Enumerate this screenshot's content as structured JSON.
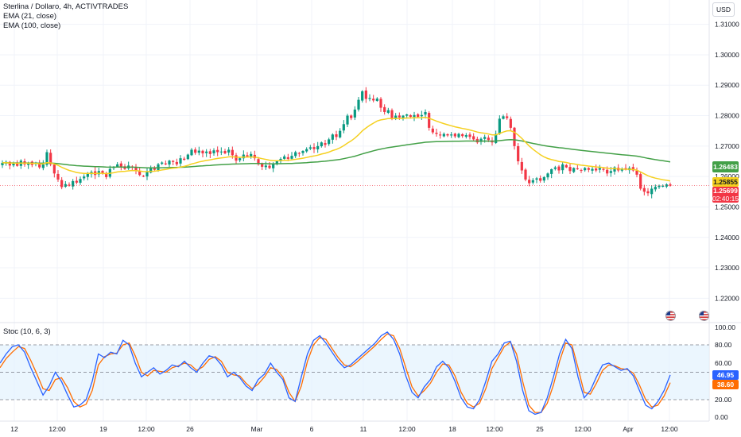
{
  "legend": {
    "symbol": "Sterlina / Dollaro, 4h, ACTIVTRADES",
    "ema1": "EMA (21, close)",
    "ema2": "EMA (100, close)"
  },
  "stoc_title": "Stoc (10, 6, 3)",
  "currency_button": "USD",
  "price_tags": {
    "ema100": "1.26483",
    "ema21": "1.25855",
    "last_price": "1.25699",
    "countdown": "02:40:15",
    "stoc_k": "46.95",
    "stoc_d": "38.60"
  },
  "colors": {
    "up": "#089981",
    "down": "#f23645",
    "ema21": "#f5d020",
    "ema100": "#43a047",
    "stoc_k": "#2962ff",
    "stoc_d": "#ff6d00",
    "band_fill": "#e3f2fd"
  },
  "icons": [
    "flag-us-icon",
    "flag-us-icon"
  ],
  "chart_data": [
    {
      "type": "candlestick",
      "title": "Sterlina / Dollaro, 4h, ACTIVTRADES",
      "ylim": [
        1.212,
        1.318
      ],
      "y_ticks": [
        "1.31000",
        "1.30000",
        "1.29000",
        "1.28000",
        "1.27000",
        "1.26000",
        "1.25000",
        "1.24000",
        "1.23000",
        "1.22000"
      ],
      "x_ticks": [
        "12",
        "12:00",
        "19",
        "12:00",
        "26",
        "Mar",
        "6",
        "11",
        "12:00",
        "18",
        "12:00",
        "25",
        "12:00",
        "Apr",
        "12:00"
      ],
      "close": [
        1.2645,
        1.2648,
        1.2636,
        1.2642,
        1.2635,
        1.2652,
        1.264,
        1.2646,
        1.2638,
        1.2644,
        1.263,
        1.264,
        1.268,
        1.264,
        1.261,
        1.259,
        1.2565,
        1.2575,
        1.257,
        1.2585,
        1.258,
        1.2592,
        1.26,
        1.261,
        1.2615,
        1.2605,
        1.2618,
        1.2612,
        1.2598,
        1.2625,
        1.2632,
        1.264,
        1.2633,
        1.2625,
        1.2636,
        1.263,
        1.262,
        1.2605,
        1.26,
        1.2615,
        1.2628,
        1.2622,
        1.264,
        1.2646,
        1.264,
        1.2652,
        1.2648,
        1.264,
        1.266,
        1.2655,
        1.2672,
        1.2688,
        1.2678,
        1.2685,
        1.2676,
        1.2682,
        1.2674,
        1.2686,
        1.268,
        1.2682,
        1.2676,
        1.2688,
        1.267,
        1.2652,
        1.266,
        1.2672,
        1.2666,
        1.2674,
        1.266,
        1.264,
        1.2632,
        1.2636,
        1.2628,
        1.264,
        1.265,
        1.2658,
        1.2666,
        1.2658,
        1.2668,
        1.268,
        1.2675,
        1.2684,
        1.269,
        1.2696,
        1.269,
        1.27,
        1.2712,
        1.2704,
        1.2722,
        1.2738,
        1.273,
        1.275,
        1.2772,
        1.28,
        1.2792,
        1.282,
        1.2852,
        1.288,
        1.2855,
        1.2858,
        1.285,
        1.2856,
        1.2826,
        1.2812,
        1.2818,
        1.279,
        1.28,
        1.2794,
        1.28,
        1.2804,
        1.2796,
        1.2802,
        1.2796,
        1.2802,
        1.2812,
        1.276,
        1.2745,
        1.274,
        1.2735,
        1.274,
        1.2735,
        1.2738,
        1.2732,
        1.274,
        1.2733,
        1.2736,
        1.273,
        1.2722,
        1.2712,
        1.2724,
        1.273,
        1.272,
        1.2712,
        1.274,
        1.279,
        1.2798,
        1.2792,
        1.276,
        1.27,
        1.265,
        1.262,
        1.259,
        1.2578,
        1.2588,
        1.2594,
        1.2586,
        1.2598,
        1.261,
        1.2624,
        1.263,
        1.262,
        1.264,
        1.263,
        1.2618,
        1.2628,
        1.2624,
        1.262,
        1.2628,
        1.2622,
        1.2625,
        1.262,
        1.2628,
        1.2622,
        1.261,
        1.2618,
        1.263,
        1.262,
        1.2625,
        1.2622,
        1.2628,
        1.262,
        1.2606,
        1.256,
        1.255,
        1.2545,
        1.256,
        1.2566,
        1.257,
        1.2569,
        1.2574,
        1.257
      ],
      "ema21_end": 1.25855,
      "ema100_end": 1.26483,
      "last_price": 1.25699
    },
    {
      "type": "line",
      "title": "Stoc (10, 6, 3)",
      "ylim": [
        0,
        100
      ],
      "y_ticks": [
        "100.00",
        "80.00",
        "60.00",
        "40.00",
        "20.00",
        "0.00"
      ],
      "bands": [
        20,
        50,
        80
      ],
      "series": [
        {
          "name": "%K",
          "values": [
            60,
            70,
            78,
            80,
            72,
            55,
            40,
            25,
            35,
            50,
            40,
            25,
            12,
            14,
            20,
            40,
            70,
            66,
            72,
            70,
            85,
            80,
            60,
            45,
            50,
            55,
            48,
            52,
            58,
            56,
            62,
            55,
            50,
            60,
            68,
            66,
            58,
            45,
            50,
            44,
            35,
            30,
            42,
            48,
            60,
            50,
            42,
            22,
            18,
            45,
            70,
            85,
            90,
            82,
            72,
            62,
            55,
            58,
            64,
            70,
            76,
            82,
            90,
            94,
            86,
            70,
            46,
            28,
            22,
            34,
            42,
            56,
            62,
            55,
            40,
            22,
            12,
            10,
            20,
            40,
            62,
            70,
            82,
            84,
            62,
            30,
            8,
            4,
            6,
            22,
            45,
            70,
            86,
            76,
            45,
            22,
            30,
            45,
            58,
            60,
            56,
            52,
            54,
            46,
            30,
            14,
            10,
            18,
            30,
            47
          ]
        },
        {
          "name": "%D",
          "values": [
            55,
            65,
            72,
            78,
            76,
            63,
            48,
            32,
            30,
            42,
            44,
            33,
            18,
            12,
            15,
            30,
            58,
            67,
            70,
            71,
            80,
            82,
            68,
            50,
            46,
            52,
            51,
            50,
            55,
            57,
            60,
            58,
            52,
            56,
            64,
            67,
            62,
            50,
            47,
            46,
            38,
            32,
            37,
            45,
            55,
            53,
            45,
            28,
            18,
            35,
            62,
            80,
            88,
            86,
            76,
            66,
            58,
            56,
            61,
            67,
            73,
            79,
            86,
            92,
            90,
            76,
            55,
            34,
            24,
            30,
            38,
            50,
            59,
            58,
            46,
            28,
            16,
            12,
            16,
            32,
            54,
            66,
            78,
            83,
            70,
            40,
            14,
            6,
            6,
            16,
            36,
            62,
            82,
            80,
            55,
            28,
            26,
            38,
            52,
            58,
            57,
            54,
            53,
            49,
            36,
            20,
            12,
            14,
            24,
            38.6
          ]
        }
      ]
    }
  ]
}
